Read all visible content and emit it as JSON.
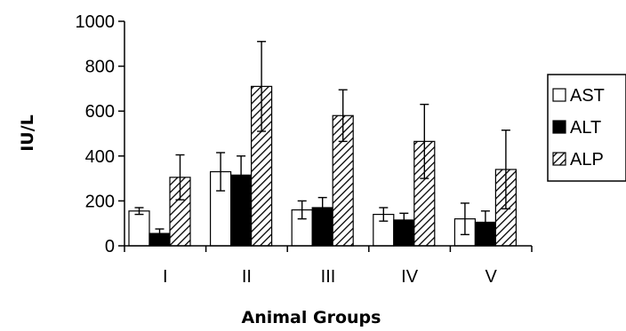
{
  "chart_data": {
    "type": "bar",
    "title": "",
    "xlabel": "Animal Groups",
    "ylabel": "IU/L",
    "ylim": [
      0,
      1000
    ],
    "yticks": [
      "0",
      "200",
      "400",
      "600",
      "800",
      "1000"
    ],
    "categories": [
      "I",
      "II",
      "III",
      "IV",
      "V"
    ],
    "grid": false,
    "legend_position": "right",
    "error_bars": true,
    "series": [
      {
        "name": "AST",
        "fill": "white",
        "values": [
          155,
          330,
          160,
          140,
          120
        ],
        "errors": [
          15,
          85,
          40,
          30,
          70
        ]
      },
      {
        "name": "ALT",
        "fill": "black",
        "values": [
          55,
          315,
          170,
          115,
          105
        ],
        "errors": [
          20,
          85,
          45,
          30,
          50
        ]
      },
      {
        "name": "ALP",
        "fill": "hatched",
        "values": [
          305,
          710,
          580,
          465,
          340
        ],
        "errors": [
          100,
          200,
          115,
          165,
          175
        ]
      }
    ]
  },
  "colors": {
    "axis": "#000000",
    "bar_stroke": "#000000",
    "bar_white": "#ffffff",
    "bar_black": "#000000",
    "hatch": "#000000"
  }
}
